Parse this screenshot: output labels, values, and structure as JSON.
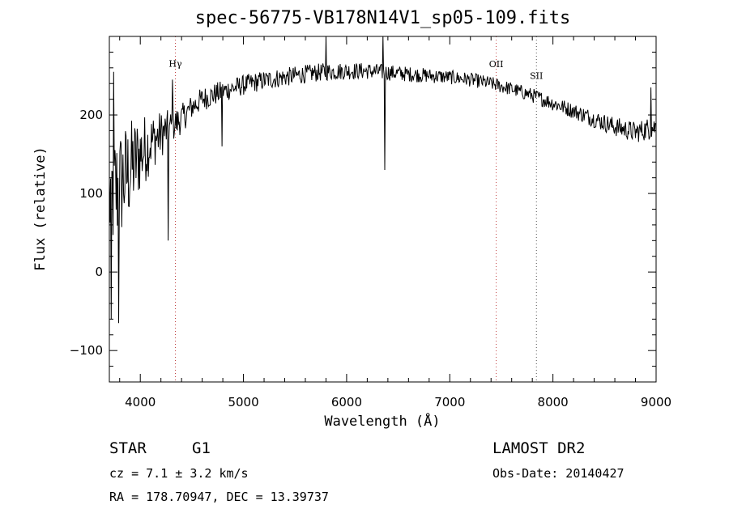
{
  "chart_data": {
    "type": "line",
    "title": "spec-56775-VB178N14V1_sp05-109.fits",
    "xlabel": "Wavelength (Å)",
    "ylabel": "Flux (relative)",
    "xlim": [
      3700,
      9000
    ],
    "ylim": [
      -140,
      300
    ],
    "xticks": [
      4000,
      5000,
      6000,
      7000,
      8000,
      9000
    ],
    "yticks": [
      -100,
      0,
      100,
      200
    ],
    "grid": false,
    "continuum": [
      [
        3700,
        95
      ],
      [
        3800,
        110
      ],
      [
        3900,
        130
      ],
      [
        4000,
        150
      ],
      [
        4100,
        165
      ],
      [
        4200,
        175
      ],
      [
        4300,
        185
      ],
      [
        4400,
        195
      ],
      [
        4500,
        210
      ],
      [
        4600,
        220
      ],
      [
        4800,
        230
      ],
      [
        5000,
        238
      ],
      [
        5200,
        244
      ],
      [
        5400,
        248
      ],
      [
        5600,
        252
      ],
      [
        5800,
        255
      ],
      [
        6000,
        256
      ],
      [
        6200,
        256
      ],
      [
        6400,
        254
      ],
      [
        6600,
        252
      ],
      [
        6800,
        250
      ],
      [
        7000,
        248
      ],
      [
        7200,
        245
      ],
      [
        7400,
        240
      ],
      [
        7600,
        233
      ],
      [
        7800,
        225
      ],
      [
        8000,
        215
      ],
      [
        8200,
        205
      ],
      [
        8400,
        195
      ],
      [
        8600,
        185
      ],
      [
        8800,
        178
      ],
      [
        9000,
        185
      ]
    ],
    "noise_amplitude": [
      [
        3700,
        85
      ],
      [
        3900,
        65
      ],
      [
        4100,
        38
      ],
      [
        4300,
        22
      ],
      [
        4500,
        16
      ],
      [
        5000,
        13
      ],
      [
        6000,
        11
      ],
      [
        7000,
        9
      ],
      [
        7600,
        9
      ],
      [
        8200,
        10
      ],
      [
        8700,
        13
      ],
      [
        9000,
        15
      ]
    ],
    "spikes": [
      [
        3720,
        -60
      ],
      [
        3740,
        255
      ],
      [
        3790,
        -65
      ],
      [
        4270,
        40
      ],
      [
        4310,
        245
      ],
      [
        4790,
        160
      ],
      [
        5800,
        300
      ],
      [
        6350,
        300
      ],
      [
        6370,
        130
      ],
      [
        8950,
        235
      ]
    ],
    "marked_lines": [
      {
        "label": "Hγ",
        "wavelength": 4340,
        "color": "#c04040"
      },
      {
        "label": "OII",
        "wavelength": 7450,
        "color": "#c04040"
      },
      {
        "label": "SII",
        "wavelength": 7840,
        "color": "#555555"
      }
    ]
  },
  "info": {
    "obj_class": "STAR",
    "obj_subclass": "G1",
    "survey": "LAMOST DR2",
    "cz": "cz = 7.1 ± 3.2 km/s",
    "obs_date": "Obs-Date: 20140427",
    "radec": "RA = 178.70947, DEC =  13.39737"
  }
}
